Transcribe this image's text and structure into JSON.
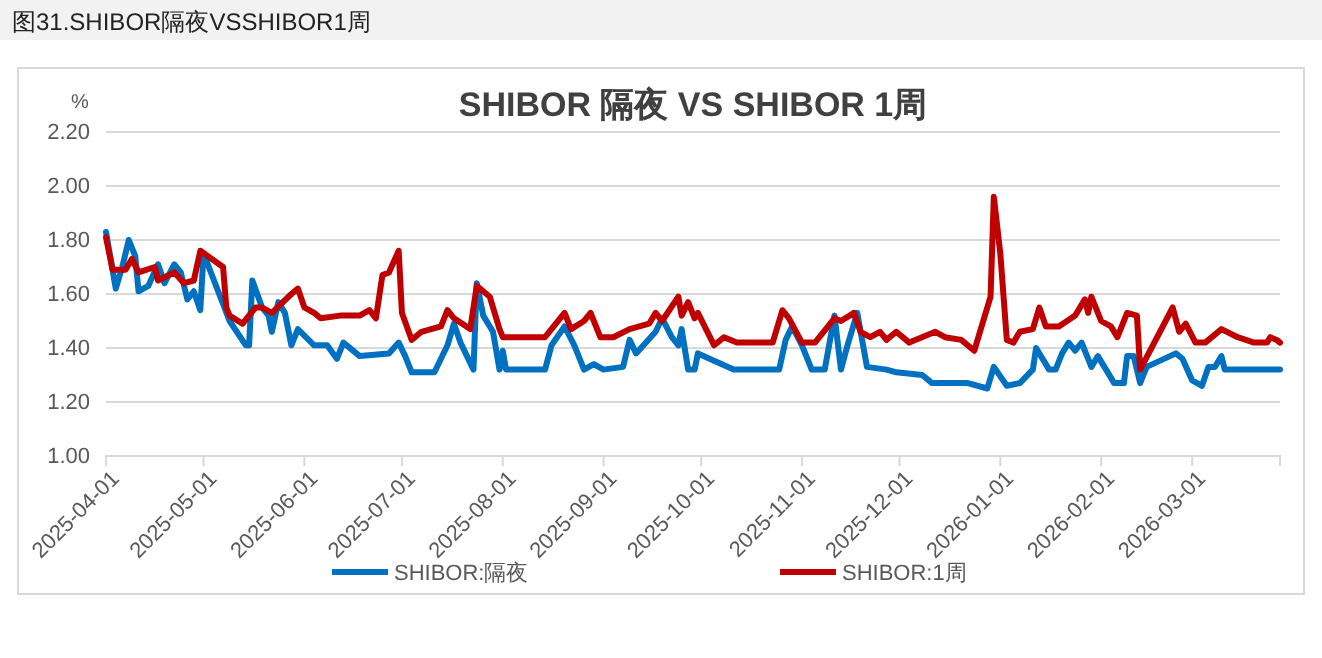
{
  "chart_data": {
    "type": "line",
    "title": "SHIBOR 隔夜 VS SHIBOR 1周",
    "ylabel": "%",
    "annotations": [
      "图31.SHIBOR隔夜VSSHIBOR1周"
    ],
    "xlim": [
      "2025-04-01",
      "2026-03-28"
    ],
    "xticks": [
      "2025-04-01",
      "2025-05-01",
      "2025-06-01",
      "2025-07-01",
      "2025-08-01",
      "2025-09-01",
      "2025-10-01",
      "2025-11-01",
      "2025-12-01",
      "2026-01-01",
      "2026-02-01",
      "2026-03-01"
    ],
    "ylim": [
      1.0,
      2.2
    ],
    "yticks": [
      {
        "value": 1.0,
        "label": "1.00"
      },
      {
        "value": 1.2,
        "label": "1.20"
      },
      {
        "value": 1.4,
        "label": "1.40"
      },
      {
        "value": 1.6,
        "label": "1.60"
      },
      {
        "value": 1.8,
        "label": "1.80"
      },
      {
        "value": 2.0,
        "label": "2.00"
      },
      {
        "value": 2.2,
        "label": "2.20"
      }
    ],
    "grid": "y",
    "legend": "bottom",
    "series": [
      {
        "name": "SHIBOR:隔夜",
        "color": "#0070c0",
        "x": [
          "2025-04-01",
          "2025-04-04",
          "2025-04-06",
          "2025-04-08",
          "2025-04-10",
          "2025-04-11",
          "2025-04-14",
          "2025-04-17",
          "2025-04-19",
          "2025-04-22",
          "2025-04-24",
          "2025-04-26",
          "2025-04-28",
          "2025-04-30",
          "2025-05-01",
          "2025-05-09",
          "2025-05-14",
          "2025-05-15",
          "2025-05-16",
          "2025-05-19",
          "2025-05-21",
          "2025-05-22",
          "2025-05-24",
          "2025-05-26",
          "2025-05-28",
          "2025-05-30",
          "2025-06-04",
          "2025-06-08",
          "2025-06-11",
          "2025-06-13",
          "2025-06-18",
          "2025-06-27",
          "2025-06-30",
          "2025-07-02",
          "2025-07-04",
          "2025-07-11",
          "2025-07-15",
          "2025-07-17",
          "2025-07-19",
          "2025-07-23",
          "2025-07-24",
          "2025-07-26",
          "2025-07-29",
          "2025-07-31",
          "2025-08-01",
          "2025-08-02",
          "2025-08-14",
          "2025-08-16",
          "2025-08-20",
          "2025-08-23",
          "2025-08-26",
          "2025-08-29",
          "2025-09-01",
          "2025-09-07",
          "2025-09-09",
          "2025-09-11",
          "2025-09-17",
          "2025-09-19",
          "2025-09-22",
          "2025-09-24",
          "2025-09-25",
          "2025-09-27",
          "2025-09-29",
          "2025-09-30",
          "2025-10-11",
          "2025-10-25",
          "2025-10-27",
          "2025-10-29",
          "2025-11-01",
          "2025-11-04",
          "2025-11-08",
          "2025-11-11",
          "2025-11-13",
          "2025-11-15",
          "2025-11-18",
          "2025-11-21",
          "2025-11-27",
          "2025-11-30",
          "2025-12-08",
          "2025-12-11",
          "2025-12-22",
          "2025-12-28",
          "2025-12-30",
          "2026-01-03",
          "2026-01-07",
          "2026-01-11",
          "2026-01-12",
          "2026-01-16",
          "2026-01-18",
          "2026-01-20",
          "2026-01-22",
          "2026-01-24",
          "2026-01-26",
          "2026-01-29",
          "2026-01-31",
          "2026-02-02",
          "2026-02-05",
          "2026-02-08",
          "2026-02-09",
          "2026-02-11",
          "2026-02-13",
          "2026-02-15",
          "2026-02-24",
          "2026-02-26",
          "2026-03-01",
          "2026-03-04",
          "2026-03-06",
          "2026-03-08",
          "2026-03-10",
          "2026-03-11",
          "2026-03-28"
        ],
        "values": [
          1.83,
          1.62,
          1.7,
          1.8,
          1.74,
          1.61,
          1.63,
          1.71,
          1.64,
          1.71,
          1.68,
          1.58,
          1.61,
          1.54,
          1.75,
          1.5,
          1.41,
          1.41,
          1.65,
          1.55,
          1.52,
          1.46,
          1.57,
          1.53,
          1.41,
          1.47,
          1.41,
          1.41,
          1.36,
          1.42,
          1.37,
          1.38,
          1.42,
          1.37,
          1.31,
          1.31,
          1.41,
          1.49,
          1.42,
          1.32,
          1.64,
          1.52,
          1.46,
          1.32,
          1.39,
          1.32,
          1.32,
          1.41,
          1.48,
          1.41,
          1.32,
          1.34,
          1.32,
          1.33,
          1.43,
          1.38,
          1.46,
          1.51,
          1.44,
          1.41,
          1.47,
          1.32,
          1.32,
          1.38,
          1.32,
          1.32,
          1.43,
          1.48,
          1.41,
          1.32,
          1.32,
          1.52,
          1.32,
          1.41,
          1.53,
          1.33,
          1.32,
          1.31,
          1.3,
          1.27,
          1.27,
          1.25,
          1.33,
          1.26,
          1.27,
          1.32,
          1.4,
          1.32,
          1.32,
          1.38,
          1.42,
          1.39,
          1.42,
          1.33,
          1.37,
          1.33,
          1.27,
          1.27,
          1.37,
          1.37,
          1.27,
          1.33,
          1.38,
          1.36,
          1.28,
          1.26,
          1.33,
          1.33,
          1.37,
          1.32,
          1.32
        ]
      },
      {
        "name": "SHIBOR:1周",
        "color": "#c00000",
        "x": [
          "2025-04-01",
          "2025-04-03",
          "2025-04-07",
          "2025-04-09",
          "2025-04-11",
          "2025-04-16",
          "2025-04-17",
          "2025-04-22",
          "2025-04-25",
          "2025-04-28",
          "2025-04-30",
          "2025-05-07",
          "2025-05-08",
          "2025-05-09",
          "2025-05-13",
          "2025-05-17",
          "2025-05-19",
          "2025-05-22",
          "2025-05-28",
          "2025-05-30",
          "2025-06-01",
          "2025-06-04",
          "2025-06-06",
          "2025-06-12",
          "2025-06-18",
          "2025-06-21",
          "2025-06-23",
          "2025-06-25",
          "2025-06-27",
          "2025-06-30",
          "2025-07-01",
          "2025-07-04",
          "2025-07-07",
          "2025-07-13",
          "2025-07-15",
          "2025-07-17",
          "2025-07-22",
          "2025-07-24",
          "2025-07-26",
          "2025-07-28",
          "2025-07-31",
          "2025-08-01",
          "2025-08-14",
          "2025-08-20",
          "2025-08-22",
          "2025-08-26",
          "2025-08-28",
          "2025-08-31",
          "2025-09-04",
          "2025-09-09",
          "2025-09-15",
          "2025-09-17",
          "2025-09-19",
          "2025-09-24",
          "2025-09-25",
          "2025-09-27",
          "2025-09-29",
          "2025-09-30",
          "2025-10-05",
          "2025-10-08",
          "2025-10-12",
          "2025-10-15",
          "2025-10-23",
          "2025-10-26",
          "2025-10-28",
          "2025-11-01",
          "2025-11-05",
          "2025-11-11",
          "2025-11-13",
          "2025-11-17",
          "2025-11-19",
          "2025-11-22",
          "2025-11-25",
          "2025-11-27",
          "2025-11-30",
          "2025-12-04",
          "2025-12-12",
          "2025-12-15",
          "2025-12-20",
          "2025-12-24",
          "2025-12-29",
          "2025-12-30",
          "2026-01-01",
          "2026-01-03",
          "2026-01-05",
          "2026-01-07",
          "2026-01-11",
          "2026-01-13",
          "2026-01-15",
          "2026-01-19",
          "2026-01-24",
          "2026-01-27",
          "2026-01-28",
          "2026-01-29",
          "2026-02-01",
          "2026-02-04",
          "2026-02-06",
          "2026-02-09",
          "2026-02-12",
          "2026-02-13",
          "2026-02-23",
          "2026-02-25",
          "2026-02-27",
          "2026-03-02",
          "2026-03-05",
          "2026-03-10",
          "2026-03-15",
          "2026-03-20",
          "2026-03-24",
          "2026-03-25",
          "2026-03-27",
          "2026-03-28"
        ],
        "values": [
          1.81,
          1.69,
          1.69,
          1.73,
          1.68,
          1.7,
          1.65,
          1.68,
          1.64,
          1.65,
          1.76,
          1.7,
          1.55,
          1.52,
          1.49,
          1.55,
          1.55,
          1.53,
          1.6,
          1.62,
          1.55,
          1.53,
          1.51,
          1.52,
          1.52,
          1.54,
          1.51,
          1.67,
          1.68,
          1.76,
          1.53,
          1.43,
          1.46,
          1.48,
          1.54,
          1.51,
          1.47,
          1.63,
          1.61,
          1.59,
          1.47,
          1.44,
          1.44,
          1.53,
          1.47,
          1.5,
          1.53,
          1.44,
          1.44,
          1.47,
          1.49,
          1.53,
          1.5,
          1.59,
          1.52,
          1.57,
          1.51,
          1.53,
          1.41,
          1.44,
          1.42,
          1.42,
          1.42,
          1.54,
          1.51,
          1.42,
          1.42,
          1.51,
          1.5,
          1.53,
          1.46,
          1.44,
          1.46,
          1.43,
          1.46,
          1.42,
          1.46,
          1.44,
          1.43,
          1.39,
          1.59,
          1.96,
          1.75,
          1.43,
          1.42,
          1.46,
          1.47,
          1.55,
          1.48,
          1.48,
          1.52,
          1.58,
          1.53,
          1.59,
          1.5,
          1.48,
          1.44,
          1.53,
          1.52,
          1.32,
          1.55,
          1.46,
          1.49,
          1.42,
          1.42,
          1.47,
          1.44,
          1.42,
          1.42,
          1.44,
          1.43,
          1.42
        ]
      }
    ]
  }
}
